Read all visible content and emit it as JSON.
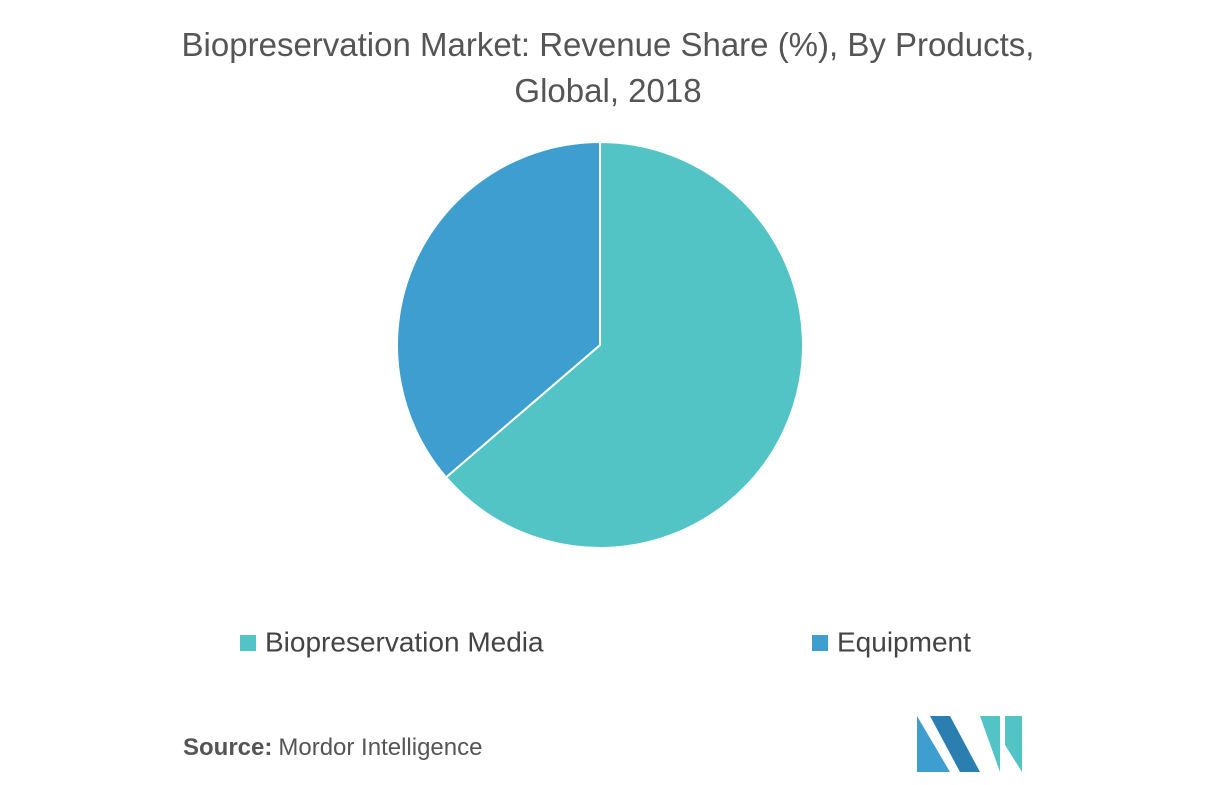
{
  "chart_data": {
    "type": "pie",
    "title": "Biopreservation Market: Revenue Share (%), By Products, Global, 2018",
    "categories": [
      "Biopreservation Media",
      "Equipment"
    ],
    "values": [
      63.7,
      36.3
    ],
    "colors": [
      "#53c4c6",
      "#3d9ecf"
    ],
    "legend": "bottom"
  },
  "source_label": "Source:",
  "source": "Mordor Intelligence"
}
